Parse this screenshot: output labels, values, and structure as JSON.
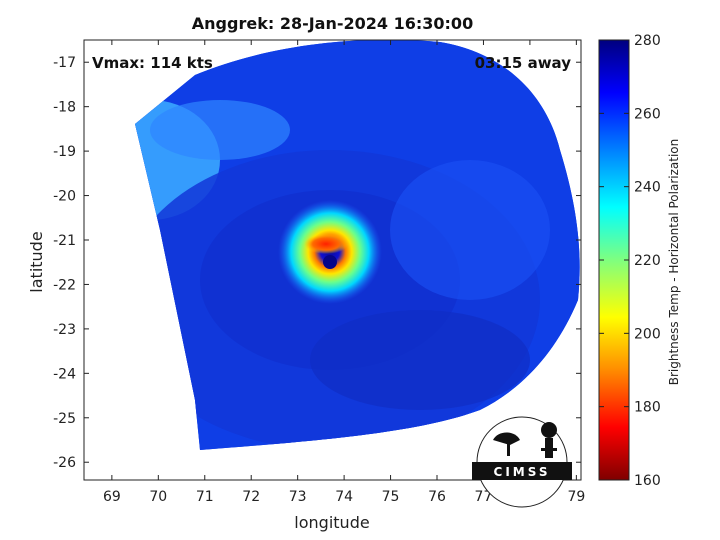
{
  "title": "Anggrek: 28-Jan-2024 16:30:00",
  "overlay": {
    "vmax": "Vmax: 114 kts",
    "away": "03:15 away"
  },
  "axes": {
    "xlabel": "longitude",
    "ylabel": "latitude",
    "xticks": [
      "69",
      "70",
      "71",
      "72",
      "73",
      "74",
      "75",
      "76",
      "77",
      "78",
      "79"
    ],
    "yticks": [
      "-17",
      "-18",
      "-19",
      "-20",
      "-21",
      "-22",
      "-23",
      "-24",
      "-25",
      "-26"
    ]
  },
  "colorbar": {
    "label": "Brightness Temp - Horizontal Polarization",
    "ticks": [
      "280",
      "260",
      "240",
      "220",
      "200",
      "180",
      "160"
    ],
    "range": [
      160,
      280
    ],
    "colormap": [
      "#7f0000",
      "#ff0000",
      "#ff8c00",
      "#ffff00",
      "#7fff7f",
      "#00ffff",
      "#0080ff",
      "#0000ff",
      "#00007f"
    ]
  },
  "logo": {
    "text": "CIMSS"
  },
  "chart_data": {
    "type": "heatmap",
    "title": "Anggrek: 28-Jan-2024 16:30:00",
    "xlabel": "longitude",
    "ylabel": "latitude",
    "xlim": [
      68.4,
      79.1
    ],
    "ylim": [
      -26.4,
      -16.5
    ],
    "storm_center": {
      "lon": 73.6,
      "lat": -21.45
    },
    "vmax_kts": 114,
    "time_offset": "03:15 away",
    "colorbar_range": [
      160,
      280
    ]
  }
}
